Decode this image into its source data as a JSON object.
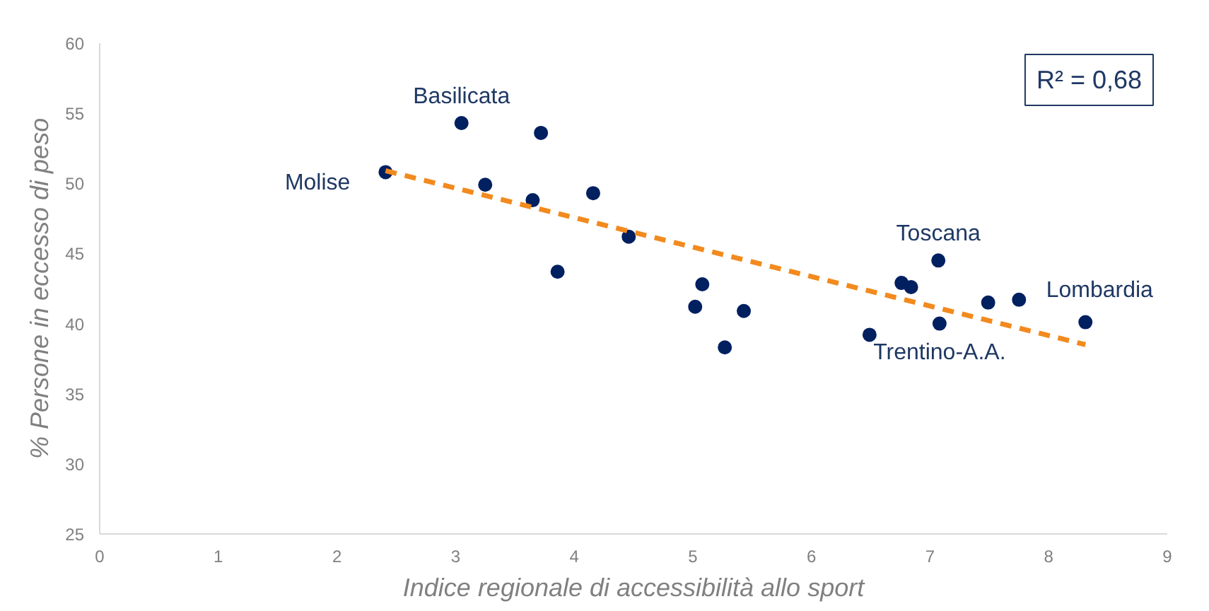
{
  "chart_data": {
    "type": "scatter",
    "xlabel": "Indice regionale di accessibilità allo sport",
    "ylabel": "% Persone in eccesso di peso",
    "xlim": [
      0,
      9
    ],
    "xticks": [
      0,
      1,
      2,
      3,
      4,
      5,
      6,
      7,
      8,
      9
    ],
    "ylim": [
      25,
      60
    ],
    "yticks": [
      25,
      30,
      35,
      40,
      45,
      50,
      55,
      60
    ],
    "grid": false,
    "marker": "circle",
    "series": [
      {
        "color": "#002060",
        "x": [
          2.41,
          3.05,
          3.72,
          3.25,
          3.65,
          4.16,
          3.86,
          4.46,
          5.08,
          5.02,
          5.43,
          5.27,
          6.49,
          6.76,
          6.84,
          7.07,
          7.08,
          7.49,
          7.75,
          8.31
        ],
        "values": [
          50.8,
          54.3,
          53.6,
          49.9,
          48.8,
          49.3,
          43.7,
          46.2,
          42.8,
          41.2,
          40.9,
          38.3,
          39.2,
          42.9,
          42.6,
          44.5,
          40.0,
          41.5,
          41.7,
          40.1
        ]
      },
      {
        "type": "line",
        "color": "#f28a1e",
        "line_style": "dashed",
        "marker": "none",
        "x": [
          2.41,
          8.31
        ],
        "values": [
          50.9,
          38.5
        ]
      }
    ],
    "annotations": [
      "R² = 0,68",
      {
        "text": "Basilicata",
        "x": 3.05,
        "y": 54.3
      },
      {
        "text": "Molise",
        "x": 2.41,
        "y": 50.8
      },
      {
        "text": "Toscana",
        "x": 7.07,
        "y": 44.5
      },
      {
        "text": "Lombardia",
        "x": 8.31,
        "y": 40.1
      },
      {
        "text": "Trentino-A.A.",
        "x": 7.08,
        "y": 40.0
      }
    ]
  }
}
